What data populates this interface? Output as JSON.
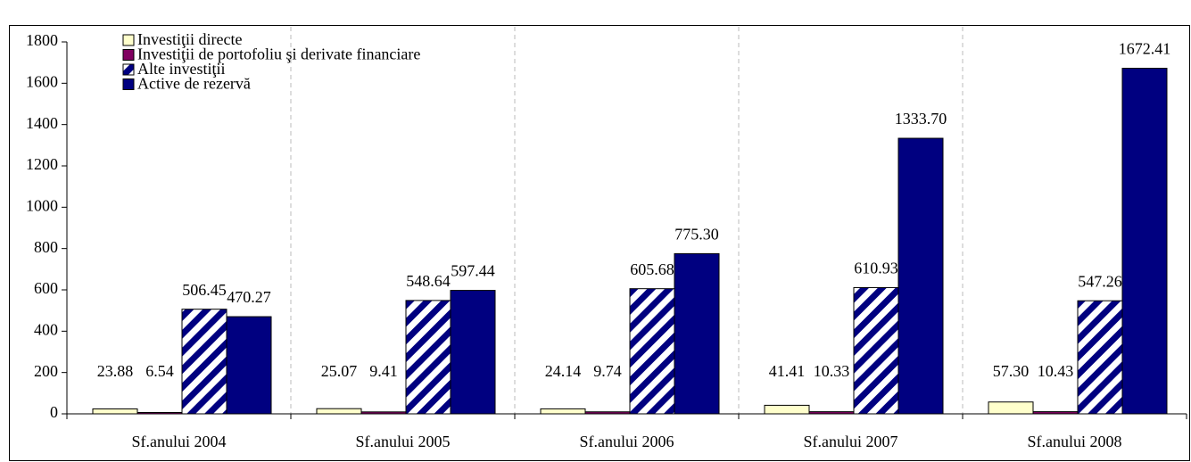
{
  "chart_data": {
    "type": "bar",
    "categories": [
      "Sf.anului 2004",
      "Sf.anului 2005",
      "Sf.anului 2006",
      "Sf.anului 2007",
      "Sf.anului 2008"
    ],
    "series": [
      {
        "name": "Investiţii directe",
        "color": "#FFFFCC",
        "values": [
          23.88,
          25.07,
          24.14,
          41.41,
          57.3
        ],
        "value_labels": [
          "23.88",
          "25.07",
          "24.14",
          "41.41",
          "57.30"
        ]
      },
      {
        "name": "Investiţii de portofoliu şi derivate financiare",
        "color": "#800060",
        "values": [
          6.54,
          9.41,
          9.74,
          10.33,
          10.43
        ],
        "value_labels": [
          "6.54",
          "9.41",
          "9.74",
          "10.33",
          "10.43"
        ]
      },
      {
        "name": "Alte investiţii",
        "color": "#000080",
        "hatch": true,
        "values": [
          506.45,
          548.64,
          605.68,
          610.93,
          547.26
        ],
        "value_labels": [
          "506.45",
          "548.64",
          "605.68",
          "610.93",
          "547.26"
        ]
      },
      {
        "name": "Active de rezervă",
        "color": "#000080",
        "values": [
          470.27,
          597.44,
          775.3,
          1333.7,
          1672.41
        ],
        "value_labels": [
          "470.27",
          "597.44",
          "775.30",
          "1333.70",
          "1672.41"
        ]
      }
    ],
    "ylim": [
      0,
      1800
    ],
    "yticks": [
      0,
      200,
      400,
      600,
      800,
      1000,
      1200,
      1400,
      1600,
      1800
    ],
    "legend": "top-left"
  }
}
